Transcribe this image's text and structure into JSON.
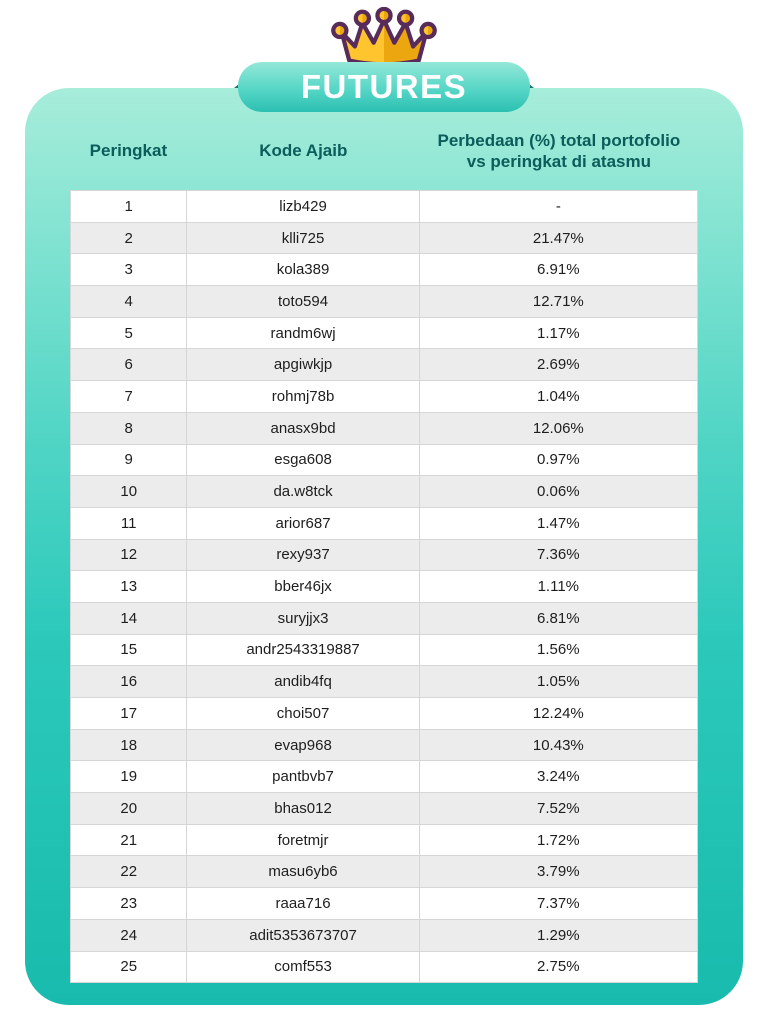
{
  "banner": {
    "title": "FUTURES"
  },
  "colors": {
    "card_gradient_top": "#a7edda",
    "card_gradient_bottom": "#18bbad",
    "ribbon_top": "#94e8d8",
    "ribbon_bottom": "#2bc0b2",
    "ribbon_fold": "#17756c",
    "header_text": "#0b5d5b",
    "crown_gold_light": "#ffc42e",
    "crown_gold_dark": "#eca60f",
    "crown_outline": "#582b5a",
    "row_alt": "#ececec"
  },
  "table": {
    "headers": [
      "Peringkat",
      "Kode Ajaib",
      "Perbedaan (%) total portofolio vs peringkat di atasmu"
    ],
    "rows": [
      {
        "peringkat": "1",
        "kode": "lizb429",
        "perbedaan": "-"
      },
      {
        "peringkat": "2",
        "kode": "klli725",
        "perbedaan": "21.47%"
      },
      {
        "peringkat": "3",
        "kode": "kola389",
        "perbedaan": "6.91%"
      },
      {
        "peringkat": "4",
        "kode": "toto594",
        "perbedaan": "12.71%"
      },
      {
        "peringkat": "5",
        "kode": "randm6wj",
        "perbedaan": "1.17%"
      },
      {
        "peringkat": "6",
        "kode": "apgiwkjp",
        "perbedaan": "2.69%"
      },
      {
        "peringkat": "7",
        "kode": "rohmj78b",
        "perbedaan": "1.04%"
      },
      {
        "peringkat": "8",
        "kode": "anasx9bd",
        "perbedaan": "12.06%"
      },
      {
        "peringkat": "9",
        "kode": "esga608",
        "perbedaan": "0.97%"
      },
      {
        "peringkat": "10",
        "kode": "da.w8tck",
        "perbedaan": "0.06%"
      },
      {
        "peringkat": "11",
        "kode": "arior687",
        "perbedaan": "1.47%"
      },
      {
        "peringkat": "12",
        "kode": "rexy937",
        "perbedaan": "7.36%"
      },
      {
        "peringkat": "13",
        "kode": "bber46jx",
        "perbedaan": "1.11%"
      },
      {
        "peringkat": "14",
        "kode": "suryjjx3",
        "perbedaan": "6.81%"
      },
      {
        "peringkat": "15",
        "kode": "andr2543319887",
        "perbedaan": "1.56%"
      },
      {
        "peringkat": "16",
        "kode": "andib4fq",
        "perbedaan": "1.05%"
      },
      {
        "peringkat": "17",
        "kode": "choi507",
        "perbedaan": "12.24%"
      },
      {
        "peringkat": "18",
        "kode": "evap968",
        "perbedaan": "10.43%"
      },
      {
        "peringkat": "19",
        "kode": "pantbvb7",
        "perbedaan": "3.24%"
      },
      {
        "peringkat": "20",
        "kode": "bhas012",
        "perbedaan": "7.52%"
      },
      {
        "peringkat": "21",
        "kode": "foretmjr",
        "perbedaan": "1.72%"
      },
      {
        "peringkat": "22",
        "kode": "masu6yb6",
        "perbedaan": "3.79%"
      },
      {
        "peringkat": "23",
        "kode": "raaa716",
        "perbedaan": "7.37%"
      },
      {
        "peringkat": "24",
        "kode": "adit5353673707",
        "perbedaan": "1.29%"
      },
      {
        "peringkat": "25",
        "kode": "comf553",
        "perbedaan": "2.75%"
      }
    ]
  }
}
